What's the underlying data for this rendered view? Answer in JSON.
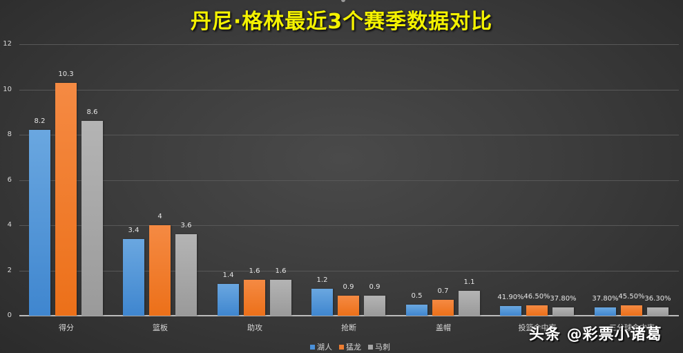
{
  "title": "丹尼·格林最近3个赛季数据对比",
  "watermark": "头条 @彩票小诸葛",
  "colors": {
    "background": "#3d3d3d",
    "title": "#f4f200",
    "lakers": "#4a90d9",
    "grizzlies": "#ed7d31",
    "spurs": "#a5a5a5"
  },
  "y_axis": {
    "ticks": [
      "0",
      "2",
      "4",
      "6",
      "8",
      "10",
      "12"
    ]
  },
  "legend": [
    {
      "label": "湖人",
      "color": "#4a90d9"
    },
    {
      "label": "猛龙",
      "color": "#ed7d31"
    },
    {
      "label": "马刺",
      "color": "#a5a5a5"
    }
  ],
  "categories": [
    "得分",
    "篮板",
    "助攻",
    "抢断",
    "盖帽",
    "投篮命中率",
    "三分球命中率"
  ],
  "labels": [
    [
      "8.2",
      "10.3",
      "8.6"
    ],
    [
      "3.4",
      "4",
      "3.6"
    ],
    [
      "1.4",
      "1.6",
      "1.6"
    ],
    [
      "1.2",
      "0.9",
      "0.9"
    ],
    [
      "0.5",
      "0.7",
      "1.1"
    ],
    [
      "41.90%",
      "46.50%",
      "37.80%"
    ],
    [
      "37.80%",
      "45.50%",
      "36.30%"
    ]
  ],
  "chart_data": {
    "type": "bar",
    "title": "丹尼·格林最近3个赛季数据对比",
    "xlabel": "",
    "ylabel": "",
    "ylim": [
      0,
      12
    ],
    "yticks": [
      0,
      2,
      4,
      6,
      8,
      10,
      12
    ],
    "grid": true,
    "legend_position": "bottom",
    "categories": [
      "得分",
      "篮板",
      "助攻",
      "抢断",
      "盖帽",
      "投篮命中率",
      "三分球命中率"
    ],
    "series": [
      {
        "name": "湖人",
        "color": "#4a90d9",
        "values": [
          8.2,
          3.4,
          1.4,
          1.2,
          0.5,
          0.419,
          0.378
        ]
      },
      {
        "name": "猛龙",
        "color": "#ed7d31",
        "values": [
          10.3,
          4,
          1.6,
          0.9,
          0.7,
          0.465,
          0.455
        ]
      },
      {
        "name": "马刺",
        "color": "#a5a5a5",
        "values": [
          8.6,
          3.6,
          1.6,
          0.9,
          1.1,
          0.378,
          0.363
        ]
      }
    ],
    "data_labels": [
      [
        "8.2",
        "10.3",
        "8.6"
      ],
      [
        "3.4",
        "4",
        "3.6"
      ],
      [
        "1.4",
        "1.6",
        "1.6"
      ],
      [
        "1.2",
        "0.9",
        "0.9"
      ],
      [
        "0.5",
        "0.7",
        "1.1"
      ],
      [
        "41.90%",
        "46.50%",
        "37.80%"
      ],
      [
        "37.80%",
        "45.50%",
        "36.30%"
      ]
    ]
  }
}
